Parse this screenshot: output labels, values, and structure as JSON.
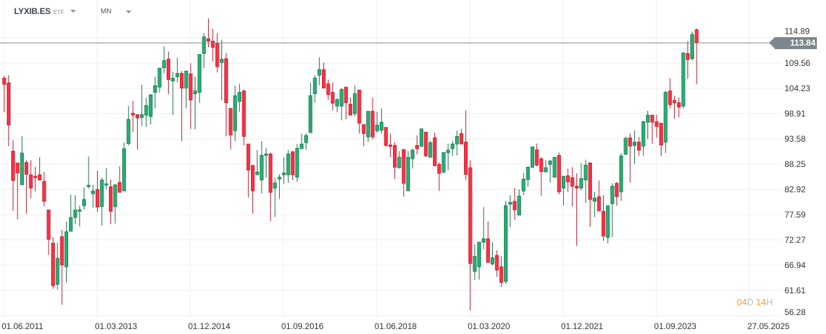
{
  "header": {
    "symbol": "LYXIB.ES",
    "instrument_type": "ETF",
    "timeframe": "MN"
  },
  "current_price": "113.84",
  "countdown": {
    "days": "04",
    "days_unit": "D",
    "hours": "14",
    "hours_unit": "H"
  },
  "colors": {
    "up_fill": "#27b074",
    "up_border": "#177349",
    "down_fill": "#ff3045",
    "down_border": "#b81c2c",
    "grid": "#eeeeee",
    "price_line": "#7d878b"
  },
  "chart_data": {
    "type": "candlestick",
    "title": "LYXIB.ES",
    "interval": "monthly",
    "start_month": "2011-06",
    "ylim": [
      55.97,
      122.88
    ],
    "y_ticks": [
      "114.89",
      "109.56",
      "104.23",
      "98.91",
      "93.58",
      "88.25",
      "82.92",
      "77.59",
      "72.27",
      "66.94",
      "61.61",
      "56.28"
    ],
    "x_ticks": [
      "01.06.2011",
      "01.03.2013",
      "01.12.2014",
      "01.09.2016",
      "01.06.2018",
      "01.03.2020",
      "01.12.2021",
      "01.09.2023",
      "27.05.2025"
    ],
    "x_tick_month_index": [
      0,
      21,
      42,
      63,
      84,
      105,
      126,
      147,
      168
    ],
    "grid": true,
    "last_price": 113.84,
    "ohlc": [
      [
        106.4,
        106.85,
        99.2,
        105.07
      ],
      [
        105.4,
        107.0,
        92.05,
        96.5
      ],
      [
        91.0,
        93.3,
        78.4,
        84.8
      ],
      [
        88.5,
        88.5,
        76.6,
        86.4
      ],
      [
        83.9,
        94.2,
        83.9,
        90.6
      ],
      [
        88.6,
        89.0,
        77.8,
        86.1
      ],
      [
        86.0,
        89.1,
        81.0,
        83.2
      ],
      [
        85.7,
        87.7,
        82.5,
        85.4
      ],
      [
        86.0,
        89.7,
        84.9,
        84.9
      ],
      [
        84.6,
        86.6,
        79.3,
        80.4
      ],
      [
        78.6,
        78.6,
        69.1,
        72.4
      ],
      [
        71.6,
        72.8,
        61.95,
        62.6
      ],
      [
        62.9,
        71.7,
        61.8,
        68.4
      ],
      [
        72.95,
        74.4,
        58.6,
        67.0
      ],
      [
        66.6,
        76.1,
        63.3,
        74.0
      ],
      [
        74.1,
        81.8,
        74.1,
        77.0
      ],
      [
        77.0,
        81.7,
        75.6,
        78.6
      ],
      [
        78.3,
        79.5,
        75.1,
        78.6
      ],
      [
        79.5,
        83.4,
        78.6,
        80.8
      ],
      [
        83.5,
        89.9,
        83.1,
        83.8
      ],
      [
        82.0,
        83.9,
        79.1,
        82.6
      ],
      [
        82.9,
        86.9,
        78.2,
        79.2
      ],
      [
        79.3,
        85.4,
        75.3,
        84.9
      ],
      [
        83.8,
        87.4,
        82.9,
        84.1
      ],
      [
        83.5,
        85.0,
        75.6,
        78.3
      ],
      [
        79.3,
        83.9,
        75.7,
        83.9
      ],
      [
        84.4,
        87.8,
        82.3,
        82.3
      ],
      [
        82.6,
        92.8,
        82.6,
        91.5
      ],
      [
        92.6,
        100.5,
        92.2,
        97.7
      ],
      [
        99.0,
        101.6,
        95.1,
        98.6
      ],
      [
        98.7,
        98.7,
        91.3,
        98.0
      ],
      [
        98.1,
        105.0,
        96.3,
        98.7
      ],
      [
        98.6,
        102.2,
        96.1,
        100.6
      ],
      [
        98.3,
        102.9,
        96.6,
        102.9
      ],
      [
        103.4,
        106.7,
        100.0,
        104.8
      ],
      [
        104.5,
        108.5,
        103.4,
        108.5
      ],
      [
        108.6,
        113.1,
        107.4,
        110.1
      ],
      [
        110.4,
        112.0,
        103.0,
        106.1
      ],
      [
        105.8,
        107.7,
        98.6,
        106.4
      ],
      [
        106.7,
        110.7,
        105.5,
        107.4
      ],
      [
        107.4,
        107.9,
        93.1,
        104.3
      ],
      [
        104.3,
        107.9,
        100.0,
        107.9
      ],
      [
        107.3,
        109.5,
        95.7,
        101.8
      ],
      [
        103.1,
        106.7,
        95.6,
        103.7
      ],
      [
        103.4,
        111.4,
        101.2,
        111.4
      ],
      [
        111.6,
        115.9,
        108.5,
        115.1
      ],
      [
        114.7,
        119.0,
        112.9,
        114.2
      ],
      [
        114.2,
        116.8,
        109.9,
        112.9
      ],
      [
        113.8,
        115.9,
        107.6,
        108.8
      ],
      [
        109.7,
        114.5,
        101.7,
        110.4
      ],
      [
        110.5,
        111.7,
        94.1,
        101.2
      ],
      [
        100.0,
        100.0,
        91.3,
        94.4
      ],
      [
        95.3,
        104.8,
        93.1,
        102.7
      ],
      [
        101.5,
        105.2,
        99.3,
        103.4
      ],
      [
        103.7,
        104.0,
        92.2,
        94.1
      ],
      [
        92.5,
        92.5,
        81.2,
        87.0
      ],
      [
        88.0,
        88.0,
        77.8,
        82.6
      ],
      [
        86.0,
        91.2,
        86.0,
        86.6
      ],
      [
        84.9,
        93.1,
        82.1,
        90.1
      ],
      [
        90.1,
        91.6,
        85.4,
        90.4
      ],
      [
        90.4,
        90.7,
        76.2,
        82.3
      ],
      [
        83.2,
        85.4,
        77.1,
        84.3
      ],
      [
        85.1,
        86.1,
        80.9,
        85.5
      ],
      [
        86.0,
        89.7,
        84.1,
        86.4
      ],
      [
        86.0,
        91.2,
        84.3,
        90.4
      ],
      [
        90.9,
        90.9,
        84.9,
        86.0
      ],
      [
        85.5,
        92.5,
        84.5,
        91.6
      ],
      [
        91.5,
        94.7,
        91.5,
        92.5
      ],
      [
        92.8,
        94.7,
        91.3,
        94.3
      ],
      [
        94.9,
        105.5,
        94.9,
        102.7
      ],
      [
        103.1,
        107.0,
        101.2,
        106.4
      ],
      [
        107.0,
        110.8,
        104.9,
        108.2
      ],
      [
        108.2,
        109.7,
        104.3,
        104.3
      ],
      [
        105.2,
        106.1,
        101.8,
        102.9
      ],
      [
        103.4,
        105.5,
        99.6,
        101.1
      ],
      [
        100.5,
        102.1,
        99.2,
        101.9
      ],
      [
        100.5,
        104.3,
        97.5,
        104.0
      ],
      [
        104.5,
        104.5,
        97.7,
        101.2
      ],
      [
        100.9,
        102.3,
        98.6,
        98.6
      ],
      [
        98.9,
        104.8,
        98.4,
        103.1
      ],
      [
        103.9,
        103.9,
        94.7,
        96.9
      ],
      [
        96.6,
        96.6,
        92.0,
        94.7
      ],
      [
        94.0,
        99.4,
        92.9,
        99.4
      ],
      [
        99.4,
        102.3,
        93.5,
        94.0
      ],
      [
        95.3,
        99.3,
        94.9,
        96.5
      ],
      [
        95.4,
        100.0,
        94.7,
        97.1
      ],
      [
        96.0,
        96.0,
        91.9,
        92.2
      ],
      [
        92.3,
        94.7,
        89.7,
        92.0
      ],
      [
        92.2,
        92.9,
        85.1,
        87.6
      ],
      [
        87.5,
        91.0,
        87.3,
        89.7
      ],
      [
        91.3,
        91.5,
        81.4,
        84.2
      ],
      [
        82.7,
        91.0,
        82.4,
        89.7
      ],
      [
        89.4,
        91.5,
        87.3,
        91.2
      ],
      [
        92.2,
        94.3,
        90.3,
        91.5
      ],
      [
        92.0,
        95.7,
        91.9,
        95.7
      ],
      [
        95.0,
        95.0,
        89.7,
        90.0
      ],
      [
        89.7,
        93.2,
        89.7,
        92.8
      ],
      [
        93.8,
        94.9,
        87.8,
        87.9
      ],
      [
        88.2,
        88.6,
        82.6,
        86.3
      ],
      [
        86.6,
        90.7,
        86.3,
        90.7
      ],
      [
        90.7,
        92.6,
        87.0,
        91.2
      ],
      [
        91.5,
        93.2,
        90.0,
        92.5
      ],
      [
        92.5,
        95.3,
        90.1,
        94.1
      ],
      [
        94.7,
        95.7,
        92.5,
        92.5
      ],
      [
        92.9,
        99.6,
        84.9,
        86.1
      ],
      [
        87.5,
        89.1,
        57.4,
        67.3
      ],
      [
        65.6,
        71.3,
        63.8,
        68.8
      ],
      [
        66.6,
        71.8,
        63.9,
        71.8
      ],
      [
        71.8,
        79.2,
        70.3,
        72.5
      ],
      [
        72.5,
        76.2,
        67.5,
        67.5
      ],
      [
        67.2,
        71.8,
        66.9,
        68.5
      ],
      [
        69.0,
        70.1,
        64.5,
        65.9
      ],
      [
        66.6,
        68.8,
        62.3,
        63.3
      ],
      [
        63.5,
        80.5,
        63.0,
        79.5
      ],
      [
        79.8,
        81.7,
        75.0,
        80.2
      ],
      [
        80.4,
        83.2,
        76.5,
        78.6
      ],
      [
        77.5,
        82.9,
        77.5,
        81.5
      ],
      [
        82.6,
        86.4,
        81.7,
        85.1
      ],
      [
        85.0,
        87.8,
        83.5,
        87.6
      ],
      [
        87.6,
        91.9,
        87.5,
        91.9
      ],
      [
        91.3,
        92.6,
        87.8,
        88.05
      ],
      [
        89.4,
        89.7,
        81.6,
        86.7
      ],
      [
        86.6,
        89.1,
        86.6,
        87.5
      ],
      [
        88.2,
        89.2,
        84.35,
        88.9
      ],
      [
        85.5,
        89.7,
        85.5,
        89.7
      ],
      [
        90.1,
        90.7,
        81.9,
        82.4
      ],
      [
        83.2,
        85.7,
        79.5,
        85.7
      ],
      [
        85.8,
        87.3,
        82.4,
        84.5
      ],
      [
        85.4,
        87.6,
        79.3,
        83.6
      ],
      [
        83.6,
        86.3,
        71.0,
        83.2
      ],
      [
        83.2,
        88.5,
        82.7,
        85.2
      ],
      [
        84.9,
        89.2,
        80.1,
        88.05
      ],
      [
        88.5,
        88.6,
        75.0,
        80.8
      ],
      [
        80.4,
        82.4,
        77.1,
        81.1
      ],
      [
        81.4,
        84.8,
        78.3,
        78.4
      ],
      [
        78.3,
        81.7,
        72.1,
        73.1
      ],
      [
        72.8,
        79.5,
        71.5,
        79.5
      ],
      [
        79.9,
        84.2,
        72.8,
        83.6
      ],
      [
        84.2,
        84.5,
        79.5,
        81.4
      ],
      [
        82.4,
        90.6,
        80.5,
        90.0
      ],
      [
        90.3,
        94.0,
        90.3,
        93.7
      ],
      [
        93.8,
        94.7,
        84.35,
        92.05
      ],
      [
        92.2,
        95.4,
        88.3,
        92.9
      ],
      [
        92.9,
        94.0,
        90.0,
        91.2
      ],
      [
        92.05,
        97.4,
        90.0,
        97.2
      ],
      [
        97.1,
        99.5,
        93.5,
        98.6
      ],
      [
        98.6,
        98.6,
        92.5,
        97.1
      ],
      [
        97.2,
        98.7,
        93.8,
        96.2
      ],
      [
        96.9,
        96.9,
        90.0,
        92.3
      ],
      [
        92.9,
        103.7,
        90.6,
        103.4
      ],
      [
        103.7,
        106.4,
        100.0,
        100.8
      ],
      [
        101.7,
        102.7,
        97.8,
        101.2
      ],
      [
        101.2,
        102.3,
        98.1,
        100.3
      ],
      [
        100.5,
        111.9,
        100.0,
        111.7
      ],
      [
        111.6,
        114.2,
        106.3,
        110.3
      ],
      [
        110.5,
        116.2,
        110.1,
        115.6
      ],
      [
        116.6,
        116.9,
        105.1,
        113.84
      ]
    ]
  }
}
